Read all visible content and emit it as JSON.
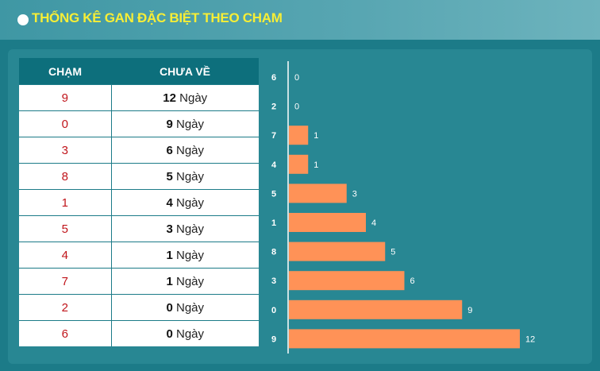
{
  "header": {
    "title": "THỐNG KÊ GAN ĐẶC BIỆT THEO CHẠM"
  },
  "table": {
    "col_cham": "CHẠM",
    "col_chuave": "CHƯA VỀ",
    "unit": "Ngày",
    "rows": [
      {
        "cham": "9",
        "days": "12"
      },
      {
        "cham": "0",
        "days": "9"
      },
      {
        "cham": "3",
        "days": "6"
      },
      {
        "cham": "8",
        "days": "5"
      },
      {
        "cham": "1",
        "days": "4"
      },
      {
        "cham": "5",
        "days": "3"
      },
      {
        "cham": "4",
        "days": "1"
      },
      {
        "cham": "7",
        "days": "1"
      },
      {
        "cham": "2",
        "days": "0"
      },
      {
        "cham": "6",
        "days": "0"
      }
    ]
  },
  "chart_data": {
    "type": "bar",
    "orientation": "horizontal",
    "categories": [
      "6",
      "2",
      "7",
      "4",
      "5",
      "1",
      "8",
      "3",
      "0",
      "9"
    ],
    "values": [
      0,
      0,
      1,
      1,
      3,
      4,
      5,
      6,
      9,
      12
    ],
    "xlim": [
      0,
      12
    ],
    "bar_color": "#ff9257",
    "data_labels": true,
    "grid": false
  },
  "colors": {
    "title": "#f7ee36",
    "header_bg": "#4f9fab",
    "panel_bg": "#288793",
    "table_header_bg": "#0d6f7c",
    "cham_text": "#c0141a"
  }
}
